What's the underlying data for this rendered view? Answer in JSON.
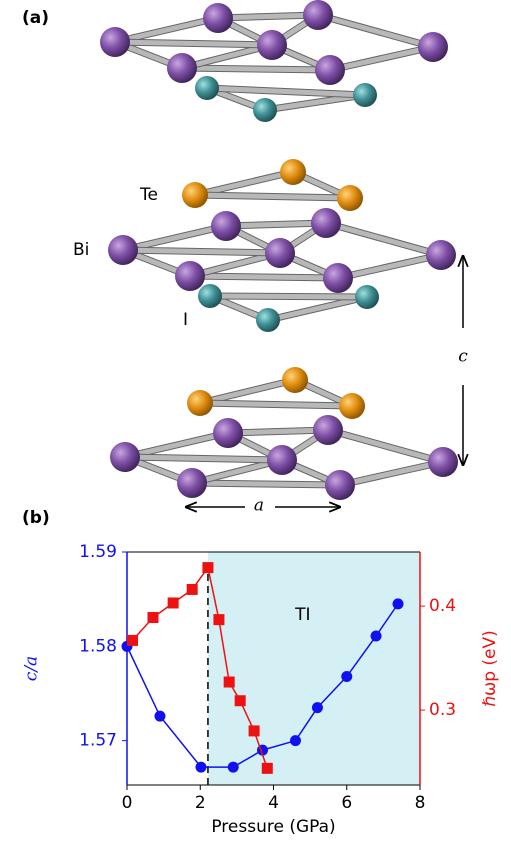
{
  "panel_a": {
    "label": "(a)",
    "atoms": {
      "te": "Te",
      "bi": "Bi",
      "i": "I"
    },
    "c": "c",
    "a": "a"
  },
  "chart_data": {
    "type": "line",
    "label": "(b)",
    "xlabel": "Pressure (GPa)",
    "ylabel": "c/a",
    "y2label": "ℏωp (eV)",
    "xlim": [
      0,
      8.0
    ],
    "xticks": [
      0,
      2,
      4,
      6,
      8
    ],
    "ylim": [
      1.5653,
      1.59
    ],
    "yticks": [
      1.57,
      1.58,
      1.59
    ],
    "y2lim": [
      0.228,
      0.452
    ],
    "y2ticks": [
      0.3,
      0.4
    ],
    "ycolor": "#1010f0",
    "y2color": "#ee1111",
    "shade": {
      "from": 2.21,
      "color": "#d4f0f4"
    },
    "annotations": [
      {
        "text": "TI",
        "x": 4.8,
        "y": 1.5833
      }
    ],
    "series": [
      {
        "color": "#1010f0",
        "marker": "circle",
        "x": [
          0,
          0.9,
          2.02,
          2.9,
          3.7,
          4.6,
          5.2,
          6.0,
          6.8,
          7.4
        ],
        "values": [
          1.58,
          1.5726,
          1.5672,
          1.5672,
          1.569,
          1.57,
          1.5735,
          1.5768,
          1.5811,
          1.5845
        ]
      },
      {
        "color": "#ee1111",
        "marker": "square",
        "axis": "y2",
        "x": [
          0.15,
          0.71,
          1.26,
          1.78,
          2.21,
          2.51,
          2.79,
          3.09,
          3.47,
          3.83
        ],
        "values": [
          0.367,
          0.389,
          0.403,
          0.416,
          0.437,
          0.387,
          0.327,
          0.309,
          0.28,
          0.244
        ]
      }
    ]
  }
}
